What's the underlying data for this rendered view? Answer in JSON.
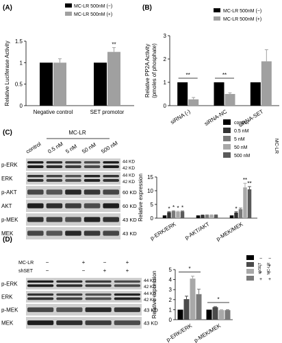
{
  "panel_labels": {
    "A": "(A)",
    "B": "(B)",
    "C": "(C)",
    "D": "(D)"
  },
  "chart_data": [
    {
      "id": "A",
      "type": "bar",
      "ylabel": "Relative Luciferase Activity",
      "ylim": [
        0,
        1.5
      ],
      "yticks": [
        0,
        0.5,
        1.0,
        1.5
      ],
      "categories": [
        "Negative control",
        "SET promotor"
      ],
      "series": [
        {
          "name": "MC-LR 500nM (−)",
          "color": "#000000",
          "values": [
            1.0,
            1.0
          ],
          "err": [
            0,
            0
          ]
        },
        {
          "name": "MC-LR 500nM (+)",
          "color": "#a0a0a0",
          "values": [
            1.0,
            1.25
          ],
          "err": [
            0.09,
            0.1
          ]
        }
      ],
      "annotations": [
        {
          "category": 1,
          "series": 1,
          "text": "**"
        }
      ]
    },
    {
      "id": "B",
      "type": "bar",
      "ylabel": "Relative PP2A Activity",
      "ylabel2": "(pmoles of phosphate)",
      "ylim": [
        0,
        3
      ],
      "yticks": [
        0,
        1,
        2,
        3
      ],
      "categories": [
        "siRNA (-)",
        "siRNA-NC",
        "siRNA-SET"
      ],
      "series": [
        {
          "name": "MC-LR 500nM (−)",
          "color": "#000000",
          "values": [
            1.0,
            1.0,
            1.0
          ],
          "err": [
            0,
            0,
            0
          ]
        },
        {
          "name": "MC-LR 500nM (+)",
          "color": "#a0a0a0",
          "values": [
            0.27,
            0.5,
            1.9
          ],
          "err": [
            0.08,
            0.05,
            0.5
          ]
        }
      ],
      "annotations": [
        {
          "category": 0,
          "text": "**"
        },
        {
          "category": 1,
          "text": "**"
        }
      ]
    },
    {
      "id": "C",
      "type": "bar",
      "ylabel": "Relative expression",
      "ylim": [
        0,
        15
      ],
      "yticks": [
        0,
        5,
        10,
        15
      ],
      "categories": [
        "p-ERK/ERK",
        "p-AKT/AKT",
        "p-MEK/MEK"
      ],
      "legend_title": "MC-LR",
      "series": [
        {
          "name": "control",
          "color": "#000000",
          "values": [
            1.0,
            1.0,
            1.0
          ],
          "err": [
            0,
            0,
            0
          ]
        },
        {
          "name": "0.5 nM",
          "color": "#333333",
          "values": [
            2.1,
            1.05,
            2.0
          ],
          "err": [
            0.2,
            0.1,
            0.3
          ]
        },
        {
          "name": "5 nM",
          "color": "#7a7a7a",
          "values": [
            2.5,
            1.1,
            3.3
          ],
          "err": [
            0.2,
            0.1,
            0.4
          ]
        },
        {
          "name": "50 nM",
          "color": "#a8a8a8",
          "values": [
            2.3,
            1.1,
            11.2
          ],
          "err": [
            0.2,
            0.1,
            1.5
          ]
        },
        {
          "name": "500 nM",
          "color": "#5a5a5a",
          "values": [
            2.4,
            1.1,
            10.5
          ],
          "err": [
            0.2,
            0.1,
            1.0
          ]
        }
      ],
      "annotations": [
        {
          "category": 0,
          "series": 1,
          "text": "*"
        },
        {
          "category": 0,
          "series": 2,
          "text": "*"
        },
        {
          "category": 0,
          "series": 3,
          "text": "*"
        },
        {
          "category": 0,
          "series": 4,
          "text": "*"
        },
        {
          "category": 2,
          "series": 1,
          "text": "*"
        },
        {
          "category": 2,
          "series": 3,
          "text": "**"
        },
        {
          "category": 2,
          "series": 4,
          "text": "**"
        }
      ]
    },
    {
      "id": "D",
      "type": "bar",
      "ylabel": "Relative expression",
      "ylim": [
        0,
        5
      ],
      "yticks": [
        0,
        1,
        2,
        3,
        4,
        5
      ],
      "categories": [
        "p-ERK/ERK",
        "p-MEK/MEK"
      ],
      "legend_cols": [
        "shSET",
        "MC-LR"
      ],
      "series": [
        {
          "name": "– –",
          "shSET": "−",
          "mclr": "−",
          "color": "#000000",
          "values": [
            1.0,
            1.0
          ],
          "err": [
            0,
            0
          ]
        },
        {
          "name": "– +",
          "shSET": "−",
          "mclr": "+",
          "color": "#4a4a4a",
          "values": [
            2.05,
            1.25
          ],
          "err": [
            0.3,
            0.05
          ]
        },
        {
          "name": "+ –",
          "shSET": "+",
          "mclr": "−",
          "color": "#a8a8a8",
          "values": [
            4.1,
            0.95
          ],
          "err": [
            0.25,
            0.05
          ]
        },
        {
          "name": "+ +",
          "shSET": "+",
          "mclr": "+",
          "color": "#7a7a7a",
          "values": [
            2.55,
            0.95
          ],
          "err": [
            0.5,
            0.05
          ]
        }
      ],
      "annotations": [
        {
          "category": 0,
          "text": "*"
        },
        {
          "category": 1,
          "text": "*"
        }
      ]
    }
  ],
  "blot_C": {
    "treatment": "MC-LR",
    "lanes": [
      "control",
      "0.5 nM",
      "5 nM",
      "50 nM",
      "500 nM"
    ],
    "rows": [
      {
        "label": "p-ERK",
        "kd": [
          "44 KD",
          "42 KD"
        ]
      },
      {
        "label": "ERK",
        "kd": [
          "44 KD",
          "42 KD"
        ]
      },
      {
        "label": "p-AKT",
        "kd": [
          "60 KD"
        ]
      },
      {
        "label": "AKT",
        "kd": [
          "60 KD"
        ]
      },
      {
        "label": "p-MEK",
        "kd": [
          "43 KD"
        ]
      },
      {
        "label": "MEK",
        "kd": [
          "43 KD"
        ]
      }
    ]
  },
  "blot_D": {
    "conditions": [
      {
        "label": "MC-LR",
        "values": [
          "−",
          "+",
          "−",
          "+"
        ]
      },
      {
        "label": "shSET",
        "values": [
          "−",
          "−",
          "+",
          "+"
        ]
      }
    ],
    "rows": [
      {
        "label": "p-ERK",
        "kd": [
          "44 KD",
          "42 KD"
        ]
      },
      {
        "label": "ERK",
        "kd": [
          "44 KD",
          "42 KD"
        ]
      },
      {
        "label": "p-MEK",
        "kd": [
          "43 KD"
        ]
      },
      {
        "label": "MEK",
        "kd": [
          "43 KD"
        ]
      }
    ]
  }
}
